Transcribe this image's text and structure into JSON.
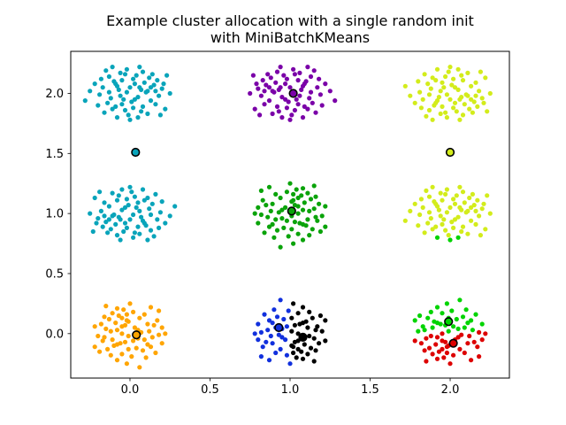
{
  "figure": {
    "title_line1": "Example cluster allocation with a single random init",
    "title_line2": "with MiniBatchKMeans"
  },
  "chart_data": {
    "type": "scatter",
    "title": "Example cluster allocation with a single random init\nwith MiniBatchKMeans",
    "xlabel": "",
    "ylabel": "",
    "grid": false,
    "legend": null,
    "xlim": [
      -0.37,
      2.37
    ],
    "ylim": [
      -0.37,
      2.35
    ],
    "xtick_labels": [
      "0.0",
      "0.5",
      "1.0",
      "1.5",
      "2.0"
    ],
    "ytick_labels": [
      "0.0",
      "0.5",
      "1.0",
      "1.5",
      "2.0"
    ],
    "xtick_values": [
      0.0,
      0.5,
      1.0,
      1.5,
      2.0
    ],
    "ytick_values": [
      0.0,
      0.5,
      1.0,
      1.5,
      2.0
    ],
    "colors": {
      "black": "#000000",
      "purple": "#7a00a8",
      "blue": "#1130dd",
      "cyan": "#09a4ba",
      "green": "#0aa30a",
      "bright_green": "#00d400",
      "yellow_green": "#d3ec1b",
      "orange": "#ffa502",
      "red": "#dd0000"
    },
    "base_offsets": [
      [
        -0.02,
        0.01
      ],
      [
        0.05,
        -0.03
      ],
      [
        -0.08,
        0.06
      ],
      [
        0.11,
        0.02
      ],
      [
        -0.05,
        -0.09
      ],
      [
        0.02,
        0.12
      ],
      [
        0.08,
        -0.11
      ],
      [
        -0.12,
        -0.04
      ],
      [
        0.15,
        0.07
      ],
      [
        -0.03,
        -0.14
      ],
      [
        0.06,
        0.05
      ],
      [
        -0.1,
        0.1
      ],
      [
        0.13,
        -0.06
      ],
      [
        -0.07,
        0.03
      ],
      [
        0.01,
        -0.07
      ],
      [
        0.09,
        0.09
      ],
      [
        -0.14,
        -0.08
      ],
      [
        0.04,
        0.15
      ],
      [
        -0.01,
        -0.18
      ],
      [
        0.18,
        -0.02
      ],
      [
        -0.17,
        0.05
      ],
      [
        0.07,
        -0.15
      ],
      [
        -0.06,
        0.17
      ],
      [
        0.12,
        0.13
      ],
      [
        -0.11,
        -0.13
      ],
      [
        0.16,
        -0.09
      ],
      [
        -0.19,
        -0.01
      ],
      [
        0.03,
        0.08
      ],
      [
        -0.04,
        -0.05
      ],
      [
        0.1,
        0.01
      ],
      [
        -0.09,
        -0.11
      ],
      [
        0.0,
        0.05
      ],
      [
        0.14,
        0.16
      ],
      [
        -0.13,
        0.14
      ],
      [
        0.05,
        -0.2
      ],
      [
        -0.22,
        0.08
      ],
      [
        0.2,
        0.04
      ],
      [
        -0.02,
        0.2
      ],
      [
        0.08,
        0.18
      ],
      [
        -0.16,
        -0.16
      ],
      [
        0.22,
        -0.13
      ],
      [
        -0.05,
        0.11
      ],
      [
        0.17,
        0.11
      ],
      [
        -0.2,
        -0.1
      ],
      [
        0.02,
        -0.12
      ],
      [
        0.25,
        0.0
      ],
      [
        -0.25,
        0.02
      ],
      [
        0.06,
        0.22
      ],
      [
        -0.08,
        -0.2
      ],
      [
        0.11,
        -0.17
      ],
      [
        -0.28,
        -0.06
      ],
      [
        0.19,
        -0.18
      ],
      [
        -0.15,
        0.19
      ],
      [
        0.23,
        0.15
      ],
      [
        0.0,
        -0.22
      ],
      [
        -0.11,
        0.22
      ],
      [
        0.21,
        0.08
      ],
      [
        -0.18,
        0.12
      ],
      [
        0.13,
        0.05
      ],
      [
        -0.06,
        -0.02
      ],
      [
        0.03,
        -0.05
      ],
      [
        -0.13,
        0.01
      ],
      [
        0.07,
        0.03
      ],
      [
        -0.03,
        0.16
      ],
      [
        0.16,
        0.02
      ],
      [
        -0.09,
        0.08
      ]
    ],
    "blobs": [
      {
        "name": "blob-0-2",
        "cx": 0,
        "cy": 2,
        "color": "cyan",
        "transform": {
          "sx": 1,
          "sy": 1,
          "swap": false
        }
      },
      {
        "name": "blob-1-2",
        "cx": 1,
        "cy": 2,
        "color": "purple",
        "transform": {
          "sx": -1,
          "sy": 1,
          "swap": false
        }
      },
      {
        "name": "blob-2-2",
        "cx": 2,
        "cy": 2,
        "color": "yellow_green",
        "transform": {
          "sx": 1,
          "sy": -1,
          "swap": false
        }
      },
      {
        "name": "blob-0-1",
        "cx": 0,
        "cy": 1,
        "color": "cyan",
        "transform": {
          "sx": -1,
          "sy": -1,
          "swap": false
        }
      },
      {
        "name": "blob-1-1",
        "cx": 1,
        "cy": 1,
        "color": "green",
        "transform": {
          "sx": 1,
          "sy": 1,
          "swap": true
        }
      },
      {
        "name": "blob-2-1",
        "cx": 2,
        "cy": 1,
        "color": "yellow_green",
        "transform": {
          "sx": 1,
          "sy": 1,
          "swap": false
        },
        "recolor": {
          "axis": "y",
          "op": "lt",
          "value": 0.82,
          "color": "bright_green"
        }
      },
      {
        "name": "blob-0-0",
        "cx": 0,
        "cy": 0,
        "color": "orange",
        "transform": {
          "sx": -1,
          "sy": 1,
          "swap": true
        }
      },
      {
        "name": "blob-1-0",
        "cx": 1,
        "cy": 0,
        "color": "blue",
        "transform": {
          "sx": 1,
          "sy": -1,
          "swap": true
        },
        "recolor": {
          "axis": "x",
          "op": "gt",
          "value": 1.005,
          "color": "black"
        }
      },
      {
        "name": "blob-2-0",
        "cx": 2,
        "cy": 0,
        "color": "bright_green",
        "transform": {
          "sx": -1,
          "sy": -1,
          "swap": true
        },
        "recolor": {
          "axis": "y",
          "op": "lt",
          "value": 0.015,
          "color": "red"
        }
      }
    ],
    "centroids": [
      {
        "x": 0.035,
        "y": 1.51,
        "color": "cyan"
      },
      {
        "x": 1.02,
        "y": 2.0,
        "color": "purple"
      },
      {
        "x": 2.0,
        "y": 1.51,
        "color": "yellow_green"
      },
      {
        "x": 1.01,
        "y": 1.02,
        "color": "green"
      },
      {
        "x": 0.04,
        "y": -0.01,
        "color": "orange"
      },
      {
        "x": 0.93,
        "y": 0.05,
        "color": "blue"
      },
      {
        "x": 1.08,
        "y": -0.03,
        "color": "black"
      },
      {
        "x": 1.99,
        "y": 0.1,
        "color": "bright_green"
      },
      {
        "x": 2.02,
        "y": -0.08,
        "color": "red"
      }
    ]
  }
}
